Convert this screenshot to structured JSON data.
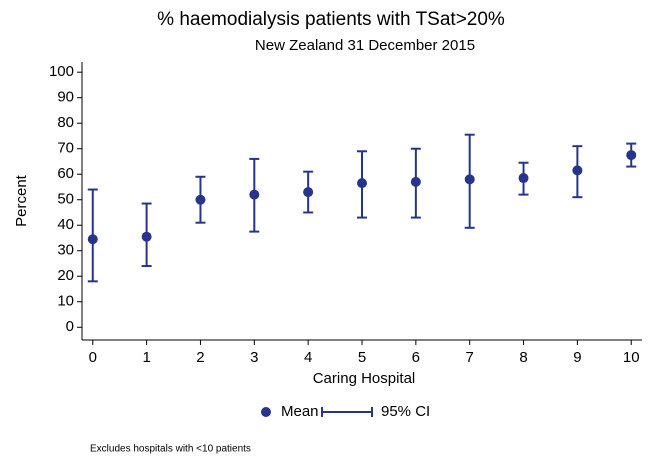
{
  "chart_data": {
    "type": "errorbar",
    "title": "% haemodialysis patients with TSat>20%",
    "subtitle": "New Zealand 31 December 2015",
    "x_label": "Caring Hospital",
    "y_label": "Percent",
    "note": "Excludes hospitals with <10 patients",
    "x": [
      0,
      1,
      2,
      3,
      4,
      5,
      6,
      7,
      8,
      9,
      10
    ],
    "series": [
      {
        "name": "Mean",
        "color": "#27348b",
        "values": [
          34.5,
          35.5,
          50,
          52,
          53,
          56.5,
          57,
          58,
          58.5,
          61.5,
          67.5
        ]
      },
      {
        "name": "95% CI",
        "color": "#27348b",
        "lower": [
          18,
          24,
          41,
          37.5,
          45,
          43,
          43,
          39,
          52,
          51,
          63
        ],
        "upper": [
          54,
          48.5,
          59,
          66,
          61,
          69,
          70,
          75.5,
          64.5,
          71,
          72
        ]
      }
    ],
    "xlim": [
      -0.2,
      10.2
    ],
    "ylim": [
      -5,
      104
    ],
    "xticks": [
      0,
      1,
      2,
      3,
      4,
      5,
      6,
      7,
      8,
      9,
      10
    ],
    "yticks": [
      0,
      10,
      20,
      30,
      40,
      50,
      60,
      70,
      80,
      90,
      100
    ],
    "grid": false
  }
}
